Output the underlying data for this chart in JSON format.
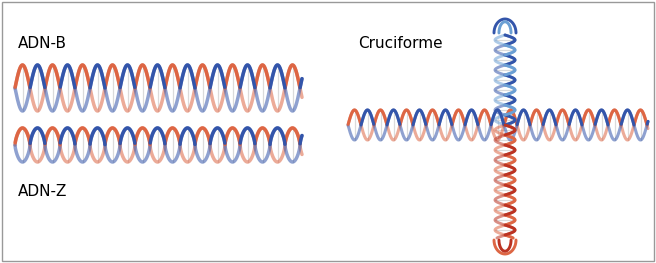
{
  "color_blue": "#6b9fd4",
  "color_blue_dark": "#3355aa",
  "color_red": "#bb3322",
  "color_orange": "#dd6644",
  "bg_color": "#ffffff",
  "border_color": "#999999",
  "label_adnb": "ADN-B",
  "label_adnz": "ADN-Z",
  "label_cruciforme": "Cruciforme",
  "label_fontsize": 11,
  "helix_lw": 2.5
}
